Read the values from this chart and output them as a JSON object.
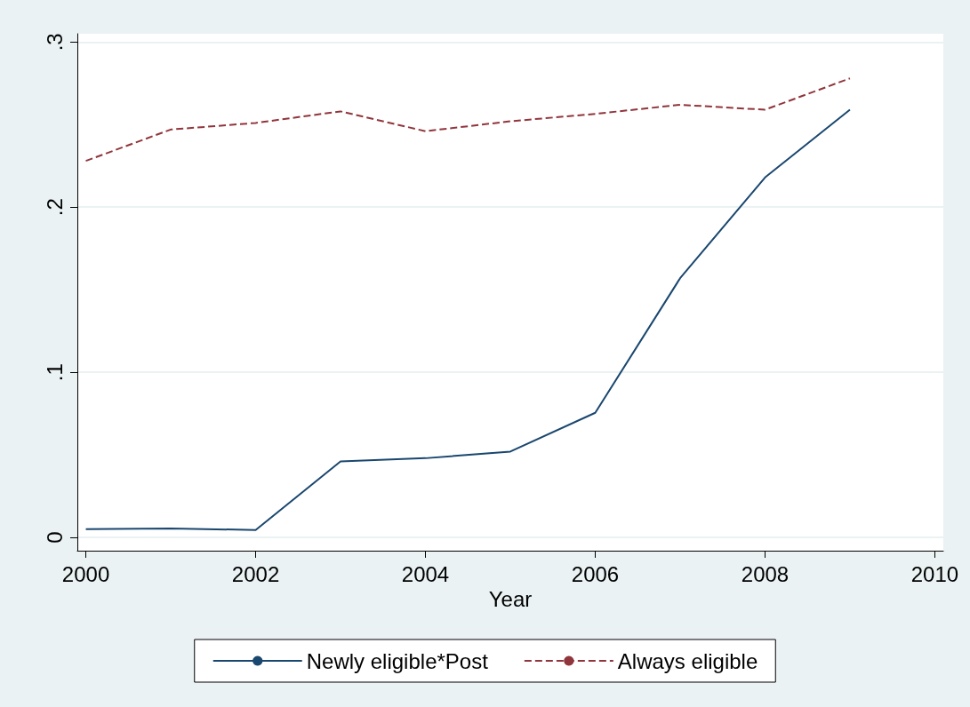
{
  "chart_data": {
    "type": "line",
    "xlabel": "Year",
    "x": [
      2000,
      2001,
      2002,
      2003,
      2004,
      2005,
      2006,
      2007,
      2008,
      2009
    ],
    "series": [
      {
        "name": "Newly eligible*Post",
        "color": "#1a476f",
        "line_style": "solid",
        "values": [
          0.005,
          0.0055,
          0.0045,
          0.046,
          0.048,
          0.052,
          0.0755,
          0.157,
          0.218,
          0.259
        ]
      },
      {
        "name": "Always eligible",
        "color": "#90353b",
        "line_style": "dashed",
        "values": [
          0.228,
          0.247,
          0.251,
          0.258,
          0.246,
          0.252,
          0.2565,
          0.262,
          0.259,
          0.278
        ]
      }
    ],
    "xlim": [
      1999.9,
      2010.1
    ],
    "xticks": [
      2000,
      2002,
      2004,
      2006,
      2008,
      2010
    ],
    "ylim": [
      -0.008,
      0.305
    ],
    "yticks": [
      {
        "value": 0,
        "label": "0"
      },
      {
        "value": 0.1,
        "label": ".1"
      },
      {
        "value": 0.2,
        "label": ".2"
      },
      {
        "value": 0.3,
        "label": ".3"
      }
    ],
    "grid": "y",
    "legend": "bottom",
    "marker": "none"
  }
}
